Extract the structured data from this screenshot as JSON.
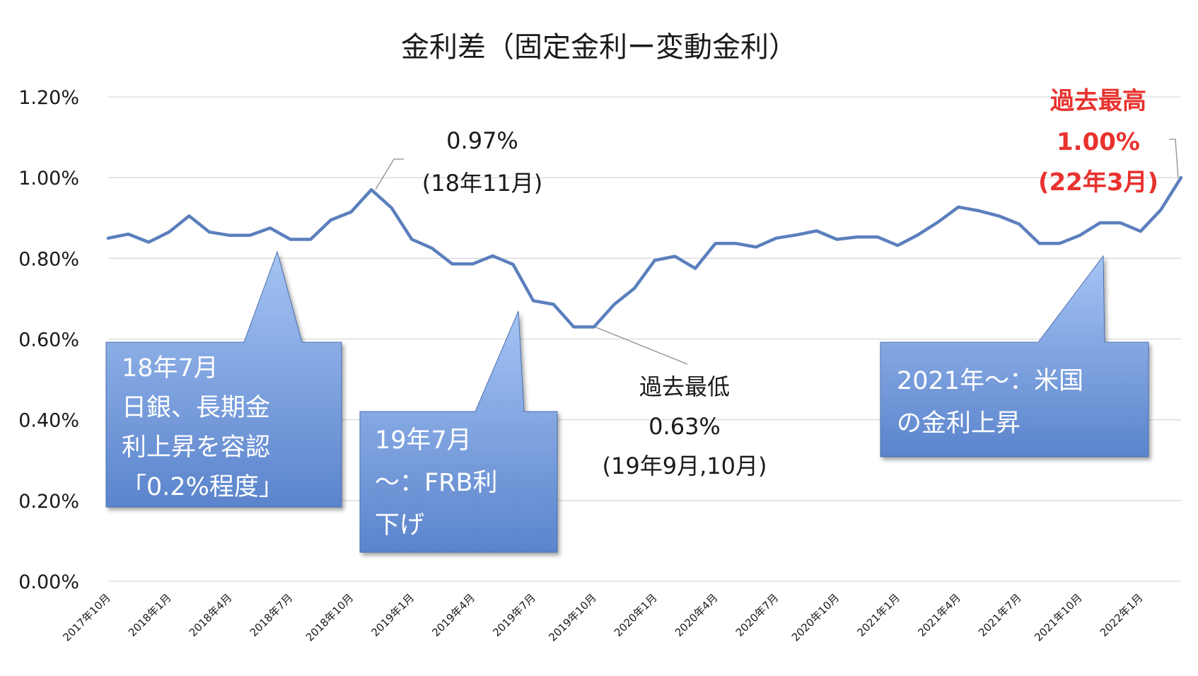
{
  "chart_data": {
    "type": "line",
    "title": "金利差（固定金利ー変動金利）",
    "xlabel": "",
    "ylabel": "",
    "ylim": [
      0,
      1.2
    ],
    "y_ticks": [
      "0.00%",
      "0.20%",
      "0.40%",
      "0.60%",
      "0.80%",
      "1.00%",
      "1.20%"
    ],
    "x_tick_labels": [
      "2017年10月",
      "2018年1月",
      "2018年4月",
      "2018年7月",
      "2018年10月",
      "2019年1月",
      "2019年4月",
      "2019年7月",
      "2019年10月",
      "2020年1月",
      "2020年4月",
      "2020年7月",
      "2020年10月",
      "2021年1月",
      "2021年4月",
      "2021年7月",
      "2021年10月",
      "2022年1月"
    ],
    "grid": true,
    "legend": "none",
    "line_color": "#5b7fbd",
    "series": [
      {
        "values": [
          0.85,
          0.86,
          0.84,
          0.865,
          0.905,
          0.865,
          0.857,
          0.857,
          0.875,
          0.847,
          0.847,
          0.895,
          0.915,
          0.97,
          0.925,
          0.847,
          0.825,
          0.786,
          0.786,
          0.806,
          0.785,
          0.695,
          0.686,
          0.63,
          0.63,
          0.686,
          0.726,
          0.795,
          0.805,
          0.775,
          0.837,
          0.837,
          0.828,
          0.85,
          0.858,
          0.868,
          0.847,
          0.853,
          0.853,
          0.832,
          0.858,
          0.89,
          0.927,
          0.918,
          0.905,
          0.885,
          0.837,
          0.837,
          0.857,
          0.888,
          0.888,
          0.867,
          0.92,
          1.0
        ]
      }
    ]
  },
  "annotations": {
    "peak": {
      "value": "0.97%",
      "date": "(18年11月)"
    },
    "low": {
      "label": "過去最低",
      "value": "0.63%",
      "date": "(19年9月,10月)"
    },
    "high": {
      "label": "過去最高",
      "value": "1.00%",
      "date": "(22年3月)",
      "color": "#e8322e"
    }
  },
  "callouts": {
    "boj": {
      "lines": [
        "18年7月",
        "日銀、長期金",
        "利上昇を容認",
        "「0.2%程度」"
      ]
    },
    "frb": {
      "lines": [
        "19年7月",
        "～：FRB利",
        "下げ"
      ]
    },
    "us": {
      "lines": [
        "2021年～：米国",
        "の金利上昇"
      ]
    }
  }
}
